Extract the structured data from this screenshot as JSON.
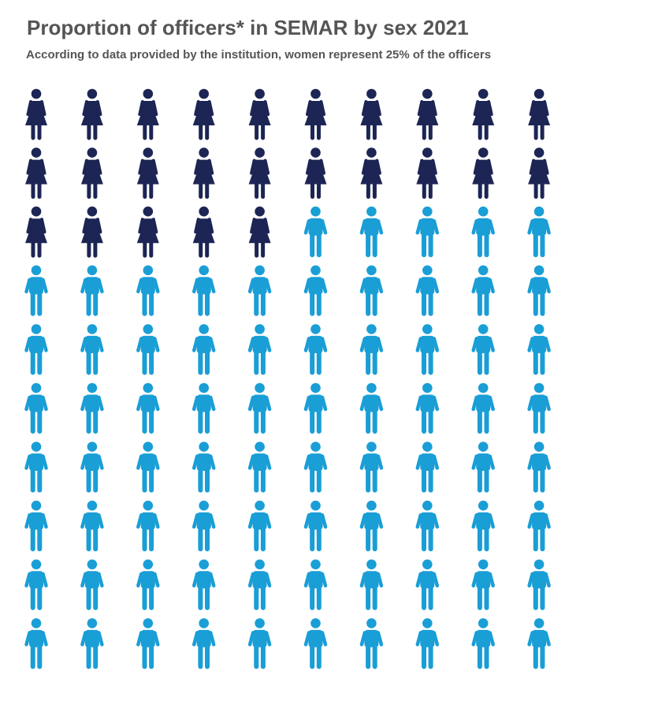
{
  "title": "Proportion of officers* in SEMAR by sex 2021",
  "subtitle": "According to data provided by the institution, women represent 25% of the officers",
  "chart_data": {
    "type": "pictogram",
    "total_icons": 100,
    "rows": 10,
    "columns": 10,
    "series": [
      {
        "icon": "woman-icon",
        "color": "#1c2554",
        "values": [
          25
        ]
      },
      {
        "icon": "man-icon",
        "color": "#1a9ed6",
        "values": [
          75
        ]
      }
    ]
  }
}
